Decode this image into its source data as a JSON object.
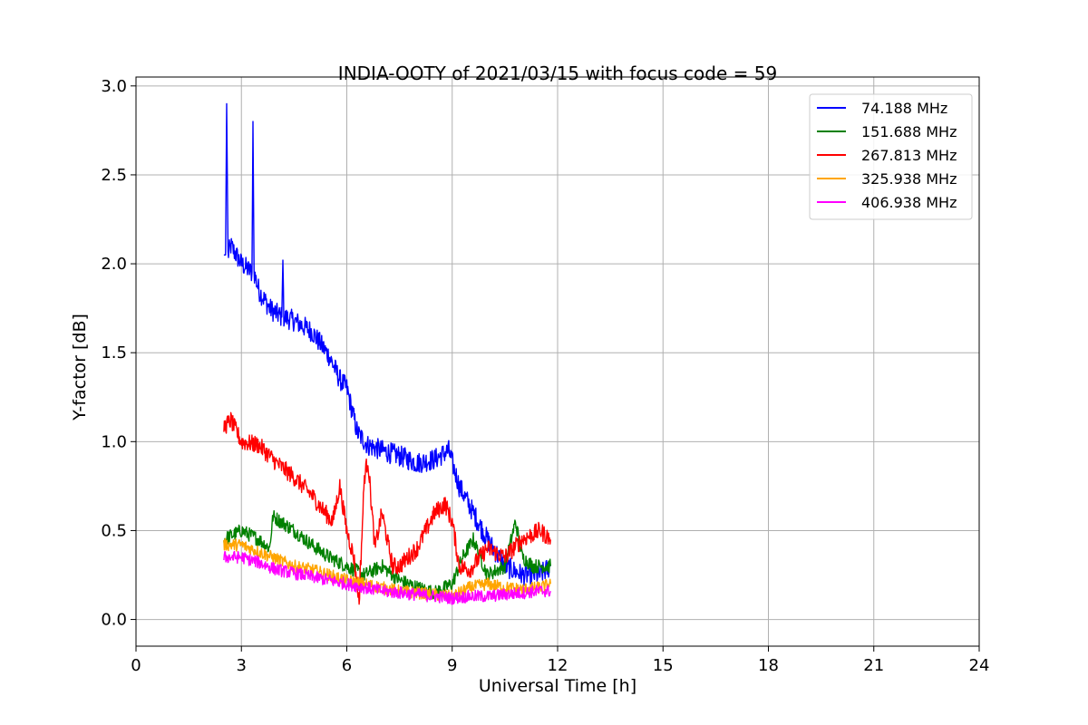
{
  "chart_data": {
    "type": "line",
    "title": "INDIA-OOTY of 2021/03/15 with focus code = 59",
    "xlabel": "Universal Time [h]",
    "ylabel": "Y-factor [dB]",
    "xlim": [
      0,
      24
    ],
    "ylim": [
      -0.15,
      3.05
    ],
    "xticks": [
      0,
      3,
      6,
      9,
      12,
      15,
      18,
      21,
      24
    ],
    "yticks": [
      0.0,
      0.5,
      1.0,
      1.5,
      2.0,
      2.5,
      3.0
    ],
    "ytick_labels": [
      "0.0",
      "0.5",
      "1.0",
      "1.5",
      "2.0",
      "2.5",
      "3.0"
    ],
    "grid": true,
    "legend_position": "top-right",
    "series": [
      {
        "name": " 74.188 MHz",
        "color": "#0000ff",
        "noise": 0.06,
        "x": [
          2.5,
          2.55,
          2.58,
          2.62,
          2.7,
          3.0,
          3.3,
          3.33,
          3.36,
          3.5,
          3.8,
          4.0,
          4.15,
          4.18,
          4.21,
          4.5,
          5.0,
          5.5,
          5.8,
          6.0,
          6.3,
          6.6,
          7.0,
          7.5,
          8.0,
          8.5,
          8.9,
          9.2,
          9.6,
          10.0,
          10.5,
          11.0,
          11.5,
          11.8
        ],
        "y": [
          2.05,
          2.05,
          2.9,
          2.05,
          2.1,
          2.0,
          1.95,
          2.8,
          1.95,
          1.85,
          1.75,
          1.72,
          1.7,
          2.02,
          1.7,
          1.68,
          1.62,
          1.48,
          1.35,
          1.3,
          1.05,
          0.98,
          0.95,
          0.92,
          0.88,
          0.9,
          0.95,
          0.75,
          0.6,
          0.45,
          0.3,
          0.25,
          0.25,
          0.3
        ]
      },
      {
        "name": "151.688 MHz",
        "color": "#008000",
        "noise": 0.04,
        "x": [
          2.5,
          3.0,
          3.5,
          3.8,
          3.9,
          4.5,
          5.0,
          5.5,
          6.0,
          6.5,
          7.0,
          7.5,
          8.0,
          8.5,
          9.0,
          9.3,
          9.6,
          10.0,
          10.5,
          10.8,
          11.0,
          11.3,
          11.8
        ],
        "y": [
          0.45,
          0.5,
          0.45,
          0.4,
          0.58,
          0.5,
          0.42,
          0.35,
          0.3,
          0.25,
          0.3,
          0.22,
          0.18,
          0.15,
          0.2,
          0.35,
          0.45,
          0.25,
          0.3,
          0.55,
          0.35,
          0.3,
          0.3
        ]
      },
      {
        "name": "267.813 MHz",
        "color": "#ff0000",
        "noise": 0.05,
        "x": [
          2.5,
          2.7,
          3.0,
          3.5,
          4.0,
          4.5,
          5.0,
          5.3,
          5.6,
          5.8,
          6.0,
          6.2,
          6.35,
          6.5,
          6.6,
          6.8,
          7.0,
          7.3,
          7.5,
          8.0,
          8.5,
          8.8,
          9.0,
          9.2,
          9.5,
          10.0,
          10.5,
          11.0,
          11.5,
          11.8
        ],
        "y": [
          1.08,
          1.12,
          1.0,
          0.98,
          0.88,
          0.8,
          0.7,
          0.62,
          0.55,
          0.75,
          0.5,
          0.35,
          0.1,
          0.8,
          0.9,
          0.4,
          0.6,
          0.3,
          0.3,
          0.4,
          0.6,
          0.65,
          0.55,
          0.3,
          0.28,
          0.4,
          0.35,
          0.45,
          0.5,
          0.45
        ]
      },
      {
        "name": "325.938 MHz",
        "color": "#ffa500",
        "noise": 0.035,
        "x": [
          2.5,
          3.0,
          3.5,
          4.0,
          4.5,
          5.0,
          5.5,
          6.0,
          6.5,
          7.0,
          7.5,
          8.0,
          8.5,
          9.0,
          9.5,
          10.0,
          10.5,
          11.0,
          11.5,
          11.8
        ],
        "y": [
          0.42,
          0.42,
          0.38,
          0.34,
          0.3,
          0.28,
          0.25,
          0.22,
          0.2,
          0.18,
          0.16,
          0.15,
          0.14,
          0.13,
          0.18,
          0.2,
          0.18,
          0.17,
          0.18,
          0.2
        ]
      },
      {
        "name": "406.938 MHz",
        "color": "#ff00ff",
        "noise": 0.035,
        "x": [
          2.5,
          3.0,
          3.5,
          4.0,
          4.5,
          5.0,
          5.5,
          6.0,
          6.5,
          7.0,
          7.5,
          8.0,
          8.5,
          9.0,
          9.5,
          10.0,
          10.5,
          11.0,
          11.5,
          11.8
        ],
        "y": [
          0.35,
          0.35,
          0.32,
          0.28,
          0.26,
          0.24,
          0.22,
          0.2,
          0.18,
          0.16,
          0.15,
          0.14,
          0.13,
          0.12,
          0.13,
          0.13,
          0.14,
          0.15,
          0.16,
          0.16
        ]
      }
    ]
  }
}
